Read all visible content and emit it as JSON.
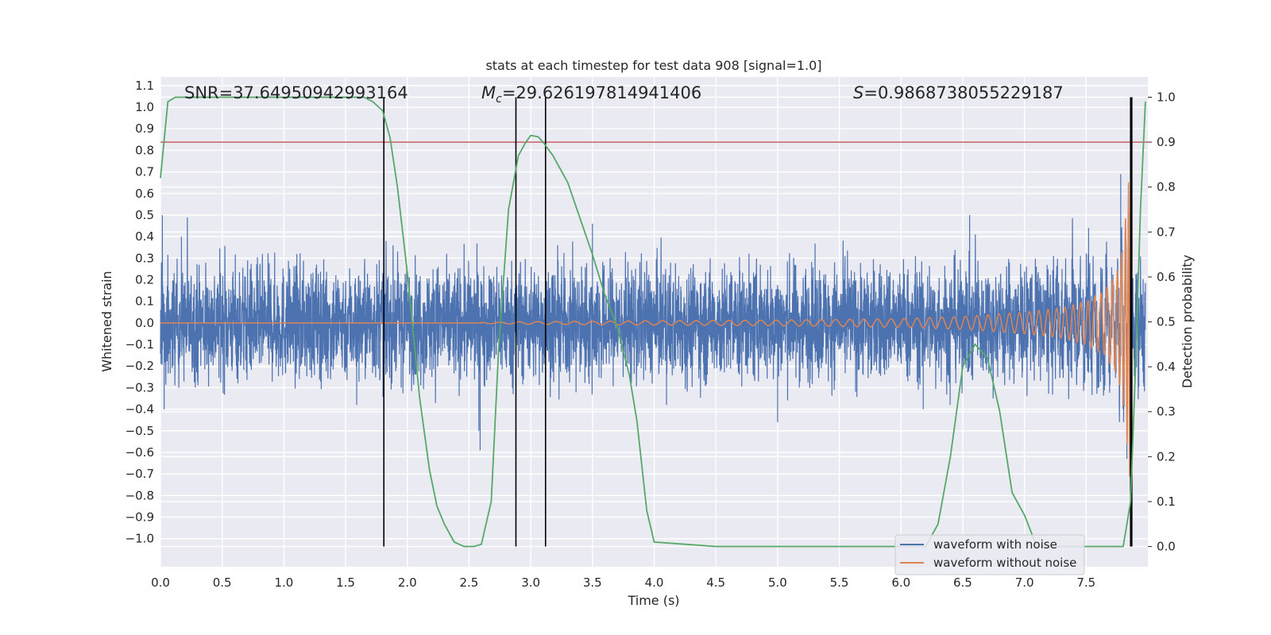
{
  "chart_data": {
    "type": "line",
    "title": "stats at each timestep for test data 908 [signal=1.0]",
    "xlabel": "Time (s)",
    "ylabel_left": "Whitened strain",
    "ylabel_right": "Detection probability",
    "xlim": [
      0.0,
      8.0
    ],
    "ylim_left": [
      -1.13,
      1.14
    ],
    "ylim_right": [
      -0.045,
      1.045
    ],
    "grid": true,
    "background": "#eaeaf2",
    "x_ticks": [
      "0.0",
      "0.5",
      "1.0",
      "1.5",
      "2.0",
      "2.5",
      "3.0",
      "3.5",
      "4.0",
      "4.5",
      "5.0",
      "5.5",
      "6.0",
      "6.5",
      "7.0",
      "7.5"
    ],
    "x_tick_values": [
      0.0,
      0.5,
      1.0,
      1.5,
      2.0,
      2.5,
      3.0,
      3.5,
      4.0,
      4.5,
      5.0,
      5.5,
      6.0,
      6.5,
      7.0,
      7.5
    ],
    "y_left_ticks": [
      "1.1",
      "1.0",
      "0.9",
      "0.8",
      "0.7",
      "0.6",
      "0.5",
      "0.4",
      "0.3",
      "0.2",
      "0.1",
      "0.0",
      "−0.1",
      "−0.2",
      "−0.3",
      "−0.4",
      "−0.5",
      "−0.6",
      "−0.7",
      "−0.8",
      "−0.9",
      "−1.0"
    ],
    "y_left_tick_values": [
      1.1,
      1.0,
      0.9,
      0.8,
      0.7,
      0.6,
      0.5,
      0.4,
      0.3,
      0.2,
      0.1,
      0.0,
      -0.1,
      -0.2,
      -0.3,
      -0.4,
      -0.5,
      -0.6,
      -0.7,
      -0.8,
      -0.9,
      -1.0
    ],
    "y_right_ticks": [
      "1.0",
      "0.9",
      "0.8",
      "0.7",
      "0.6",
      "0.5",
      "0.4",
      "0.3",
      "0.2",
      "0.1",
      "0.0"
    ],
    "y_right_tick_values": [
      1.0,
      0.9,
      0.8,
      0.7,
      0.6,
      0.5,
      0.4,
      0.3,
      0.2,
      0.1,
      0.0
    ],
    "annotations": {
      "snr": "SNR=37.64950942993164",
      "mc_symbol": "M",
      "mc_sub": "c",
      "mc_value": "=29.626197814941406",
      "s_symbol": "S",
      "s_value": "=0.9868738055229187"
    },
    "legend": {
      "placement": "lower-right",
      "entries": [
        "waveform with noise",
        "waveform without noise"
      ]
    },
    "colors": {
      "noise": "#4c72b0",
      "clean": "#dd8452",
      "probability": "#55a868",
      "threshold": "#c44e52",
      "vlines": "#000000"
    },
    "threshold": 0.9,
    "vertical_lines_x": [
      1.81,
      2.88,
      3.12,
      7.86,
      7.87
    ],
    "series": [
      {
        "name": "waveform with noise",
        "axis": "left",
        "noise_envelope": [
          0.22,
          0.22,
          0.22,
          0.22,
          0.22,
          0.22,
          0.22,
          0.22,
          0.22,
          0.22,
          0.22,
          0.22,
          0.22,
          0.22,
          0.22,
          0.25
        ],
        "spikes": [
          [
            0.03,
            -0.4
          ],
          [
            0.17,
            0.4
          ],
          [
            1.59,
            -0.38
          ],
          [
            1.95,
            -0.3
          ],
          [
            2.59,
            -0.59
          ],
          [
            3.5,
            0.46
          ],
          [
            4.1,
            -0.38
          ],
          [
            5.0,
            -0.46
          ],
          [
            6.18,
            -0.4
          ],
          [
            7.52,
            0.44
          ],
          [
            7.78,
            0.69
          ],
          [
            7.83,
            -0.63
          ]
        ]
      },
      {
        "name": "waveform without noise",
        "axis": "left",
        "x": [
          2.6,
          3.0,
          4.0,
          5.0,
          6.0,
          6.5,
          7.0,
          7.3,
          7.5,
          7.65,
          7.75,
          7.8,
          7.85,
          7.87
        ],
        "amplitude": [
          0.003,
          0.006,
          0.01,
          0.013,
          0.02,
          0.03,
          0.05,
          0.07,
          0.1,
          0.15,
          0.24,
          0.36,
          0.7,
          0.8
        ]
      },
      {
        "name": "",
        "axis": "right",
        "x": [
          0.0,
          0.06,
          0.12,
          0.2,
          0.5,
          1.0,
          1.5,
          1.65,
          1.72,
          1.8,
          1.86,
          1.92,
          2.0,
          2.1,
          2.18,
          2.24,
          2.3,
          2.38,
          2.46,
          2.54,
          2.6,
          2.68,
          2.74,
          2.82,
          2.9,
          2.96,
          3.0,
          3.06,
          3.1,
          3.18,
          3.3,
          3.4,
          3.5,
          3.6,
          3.7,
          3.8,
          3.86,
          3.94,
          4.0,
          4.5,
          5.0,
          5.5,
          6.0,
          6.2,
          6.3,
          6.4,
          6.5,
          6.6,
          6.7,
          6.8,
          6.9,
          7.0,
          7.1,
          7.5,
          7.8,
          7.86,
          7.9,
          7.94,
          7.98
        ],
        "values": [
          0.82,
          0.99,
          1.0,
          1.0,
          1.0,
          1.0,
          1.0,
          1.0,
          0.99,
          0.97,
          0.91,
          0.8,
          0.61,
          0.33,
          0.17,
          0.09,
          0.05,
          0.01,
          0.0,
          0.0,
          0.005,
          0.1,
          0.44,
          0.75,
          0.87,
          0.9,
          0.915,
          0.912,
          0.9,
          0.87,
          0.81,
          0.73,
          0.65,
          0.56,
          0.49,
          0.38,
          0.28,
          0.08,
          0.01,
          0.0,
          0.0,
          0.0,
          0.0,
          0.0,
          0.05,
          0.2,
          0.4,
          0.45,
          0.42,
          0.3,
          0.12,
          0.07,
          0.0,
          0.0,
          0.0,
          0.1,
          0.4,
          0.75,
          0.99
        ]
      }
    ]
  }
}
